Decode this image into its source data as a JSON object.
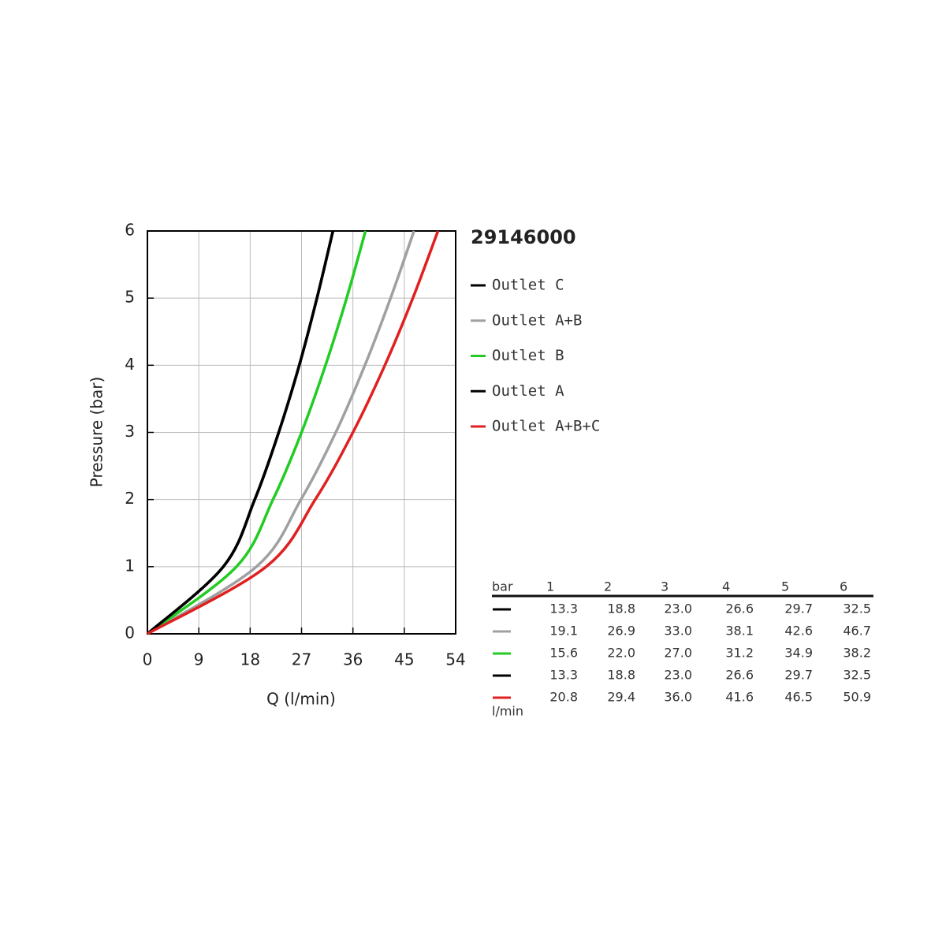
{
  "chart_data": {
    "type": "line",
    "title": "29146000",
    "x_label": "Q (l/min)",
    "y_label": "Pressure (bar)",
    "xlim": [
      0,
      54
    ],
    "xticks": [
      0,
      9,
      18,
      27,
      36,
      45,
      54
    ],
    "ylim": [
      0,
      6
    ],
    "yticks": [
      0,
      1,
      2,
      3,
      4,
      5,
      6
    ],
    "grid": true,
    "series": [
      {
        "name": "Outlet C",
        "color": "#000000",
        "x": [
          0,
          13.3,
          18.8,
          23.0,
          26.6,
          29.7,
          32.5
        ],
        "values": [
          0,
          1,
          2,
          3,
          4,
          5,
          6
        ]
      },
      {
        "name": "Outlet A+B",
        "color": "#a0a0a0",
        "x": [
          0,
          19.1,
          26.9,
          33.0,
          38.1,
          42.6,
          46.7
        ],
        "values": [
          0,
          1,
          2,
          3,
          4,
          5,
          6
        ]
      },
      {
        "name": "Outlet B",
        "color": "#22cc22",
        "x": [
          0,
          15.6,
          22.0,
          27.0,
          31.2,
          34.9,
          38.2
        ],
        "values": [
          0,
          1,
          2,
          3,
          4,
          5,
          6
        ]
      },
      {
        "name": "Outlet A",
        "color": "#000000",
        "x": [
          0,
          13.3,
          18.8,
          23.0,
          26.6,
          29.7,
          32.5
        ],
        "values": [
          0,
          1,
          2,
          3,
          4,
          5,
          6
        ]
      },
      {
        "name": "Outlet A+B+C",
        "color": "#e02020",
        "x": [
          0,
          20.8,
          29.4,
          36.0,
          41.6,
          46.5,
          50.9
        ],
        "values": [
          0,
          1,
          2,
          3,
          4,
          5,
          6
        ]
      }
    ]
  },
  "table": {
    "columns": [
      "bar",
      "1",
      "2",
      "3",
      "4",
      "5",
      "6"
    ],
    "rows": [
      [
        "13.3",
        "18.8",
        "23.0",
        "26.6",
        "29.7",
        "32.5"
      ],
      [
        "19.1",
        "26.9",
        "33.0",
        "38.1",
        "42.6",
        "46.7"
      ],
      [
        "15.6",
        "22.0",
        "27.0",
        "31.2",
        "34.9",
        "38.2"
      ],
      [
        "13.3",
        "18.8",
        "23.0",
        "26.6",
        "29.7",
        "32.5"
      ],
      [
        "20.8",
        "29.4",
        "36.0",
        "41.6",
        "46.5",
        "50.9"
      ]
    ],
    "unit": "l/min"
  }
}
